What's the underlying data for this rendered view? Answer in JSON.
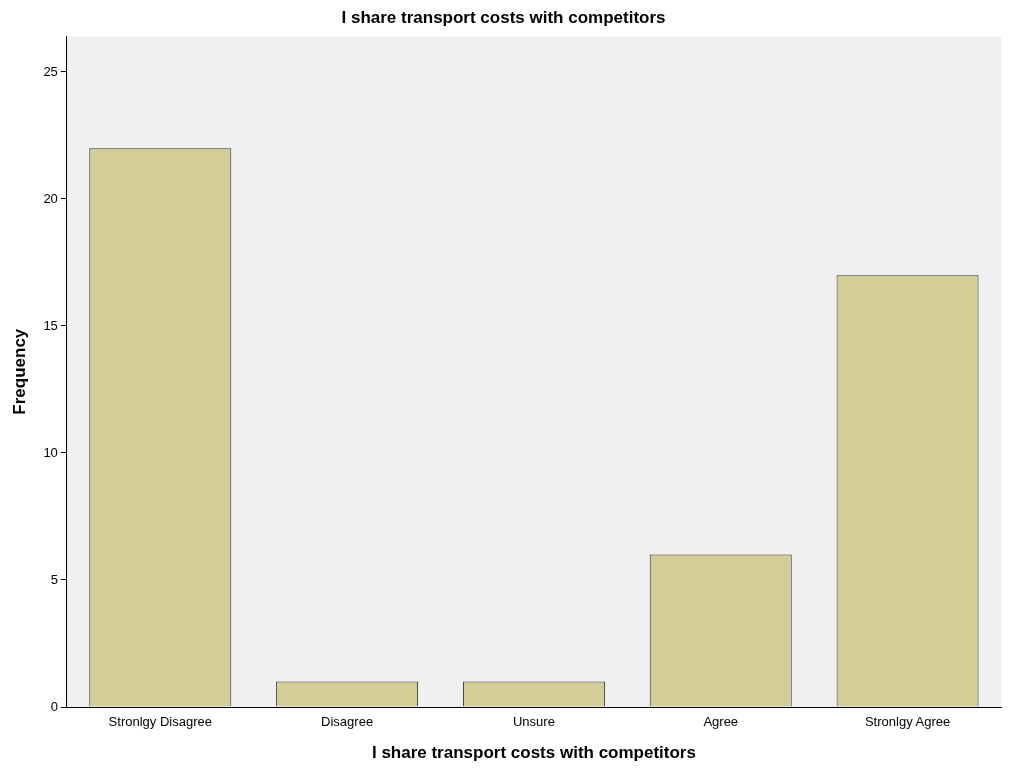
{
  "chart_data": {
    "type": "bar",
    "title": "I share transport costs with competitors",
    "xlabel": "I share transport costs with competitors",
    "ylabel": "Frequency",
    "categories": [
      "Stronlgy Disagree",
      "Disagree",
      "Unsure",
      "Agree",
      "Stronlgy Agree"
    ],
    "values": [
      22,
      1,
      1,
      6,
      17
    ],
    "color": "#d3ce97",
    "ylim": [
      0,
      26.4
    ],
    "yticks": [
      0,
      5,
      10,
      15,
      20,
      25
    ],
    "grid": false,
    "legend": false
  }
}
